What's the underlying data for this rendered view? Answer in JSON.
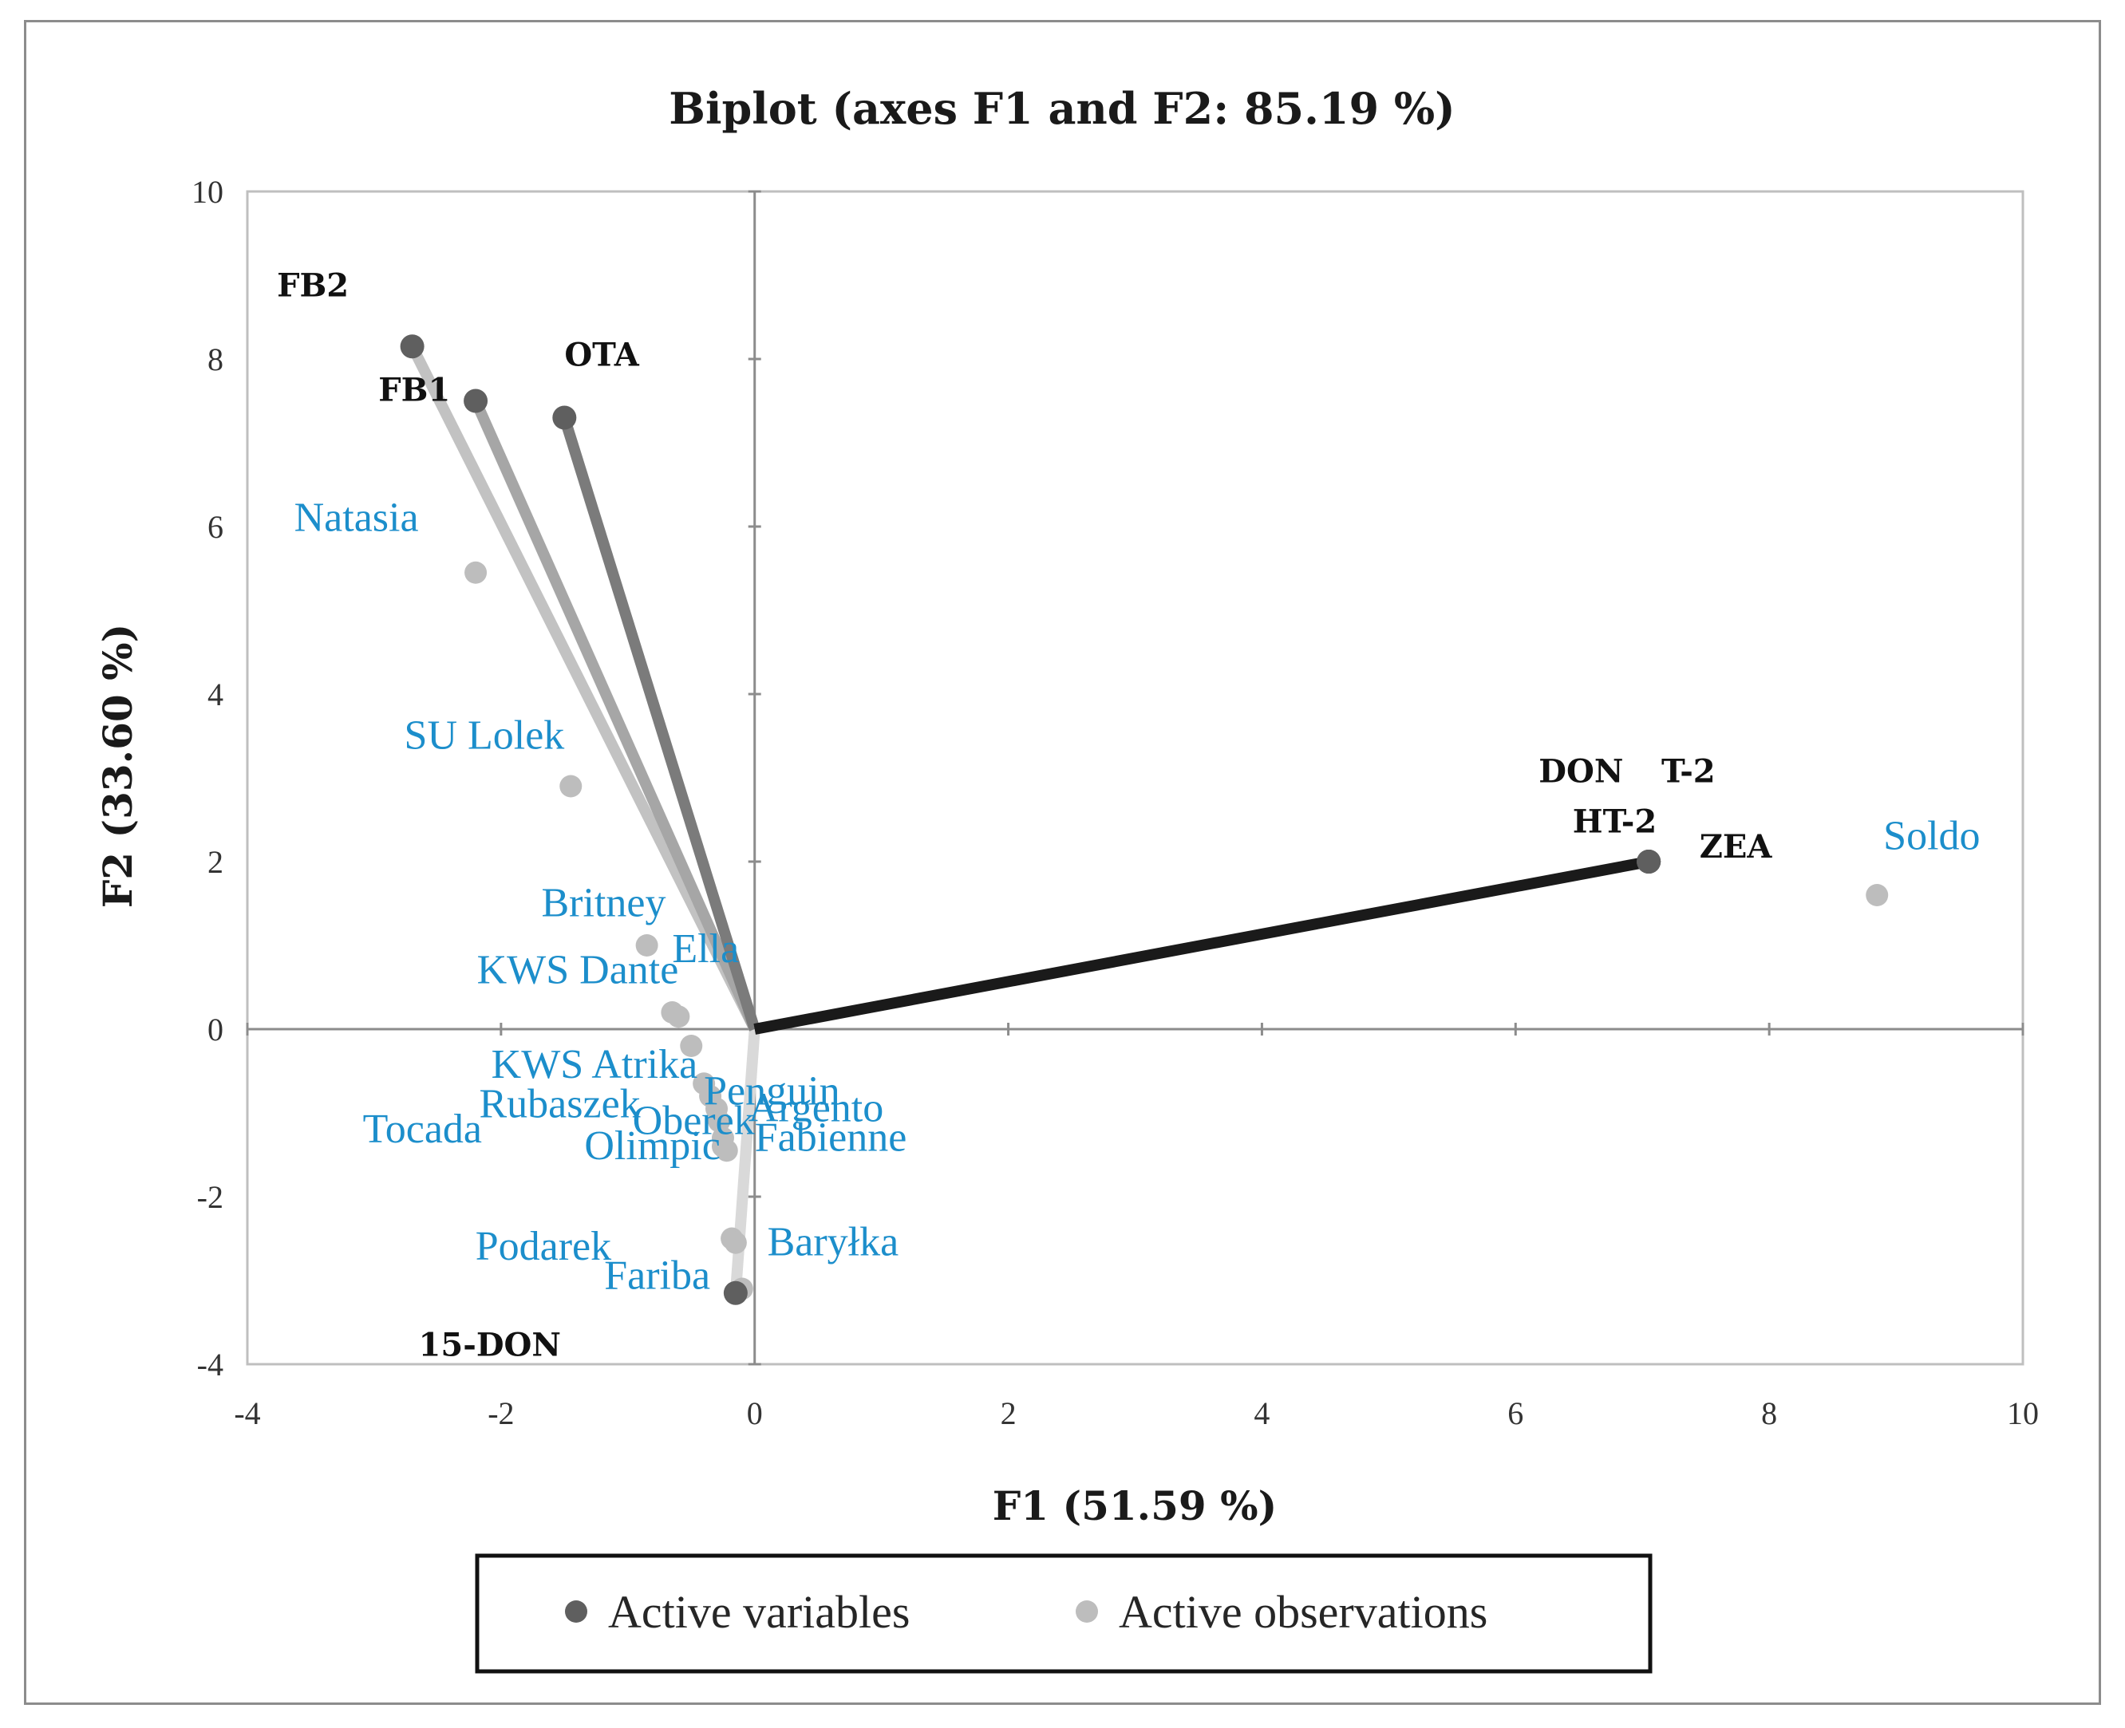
{
  "chart_data": {
    "type": "scatter",
    "subtype": "biplot",
    "title": "Biplot (axes F1 and F2: 85.19 %)",
    "xlabel": "F1 (51.59 %)",
    "ylabel": "F2 (33.60 %)",
    "xlim": [
      -4,
      10
    ],
    "ylim": [
      -4,
      10
    ],
    "xticks": [
      "-4",
      "-2",
      "0",
      "2",
      "4",
      "6",
      "8",
      "10"
    ],
    "yticks": [
      "-4",
      "-2",
      "0",
      "2",
      "4",
      "6",
      "8",
      "10"
    ],
    "legend": {
      "position": "bottom",
      "entries": [
        {
          "name": "Active variables",
          "color": "#5f5f5f"
        },
        {
          "name": "Active observations",
          "color": "#bdbdbd"
        }
      ]
    },
    "active_variables": [
      {
        "name": "FB2",
        "x": -2.7,
        "y": 8.15,
        "vector_color": "#c2c2c2"
      },
      {
        "name": "FB1",
        "x": -2.2,
        "y": 7.5,
        "vector_color": "#a6a6a6"
      },
      {
        "name": "OTA",
        "x": -1.5,
        "y": 7.3,
        "vector_color": "#7b7b7b"
      },
      {
        "name": "DON",
        "x": 7.05,
        "y": 2.0,
        "vector_color": "#1a1a1a"
      },
      {
        "name": "T-2",
        "x": 7.05,
        "y": 2.0,
        "vector_color": "#1a1a1a"
      },
      {
        "name": "HT-2",
        "x": 7.05,
        "y": 2.0,
        "vector_color": "#1a1a1a"
      },
      {
        "name": "ZEA",
        "x": 7.05,
        "y": 2.0,
        "vector_color": "#1a1a1a"
      },
      {
        "name": "15-DON",
        "x": -0.15,
        "y": -3.15,
        "vector_color": "#d9d9d9"
      }
    ],
    "active_observations": [
      {
        "name": "Natasia",
        "x": -2.2,
        "y": 5.45
      },
      {
        "name": "SU Lolek",
        "x": -1.45,
        "y": 2.9
      },
      {
        "name": "Britney",
        "x": -0.85,
        "y": 1.0
      },
      {
        "name": "Ella",
        "x": -0.65,
        "y": 0.2
      },
      {
        "name": "KWS Dante",
        "x": -0.6,
        "y": 0.15
      },
      {
        "name": "KWS Atrika",
        "x": -0.5,
        "y": -0.2
      },
      {
        "name": "Penguin",
        "x": -0.4,
        "y": -0.65
      },
      {
        "name": "Rubaszek",
        "x": -0.35,
        "y": -0.8
      },
      {
        "name": "Argento",
        "x": -0.3,
        "y": -0.95
      },
      {
        "name": "Oberek",
        "x": -0.28,
        "y": -1.1
      },
      {
        "name": "Fabienne",
        "x": -0.25,
        "y": -1.4
      },
      {
        "name": "Tocada",
        "x": -0.25,
        "y": -1.3
      },
      {
        "name": "Olimpic",
        "x": -0.22,
        "y": -1.45
      },
      {
        "name": "Podarek",
        "x": -0.18,
        "y": -2.5
      },
      {
        "name": "Baryłka",
        "x": -0.15,
        "y": -2.55
      },
      {
        "name": "Fariba",
        "x": -0.1,
        "y": -3.1
      },
      {
        "name": "Soldo",
        "x": 8.85,
        "y": 1.6
      }
    ]
  }
}
